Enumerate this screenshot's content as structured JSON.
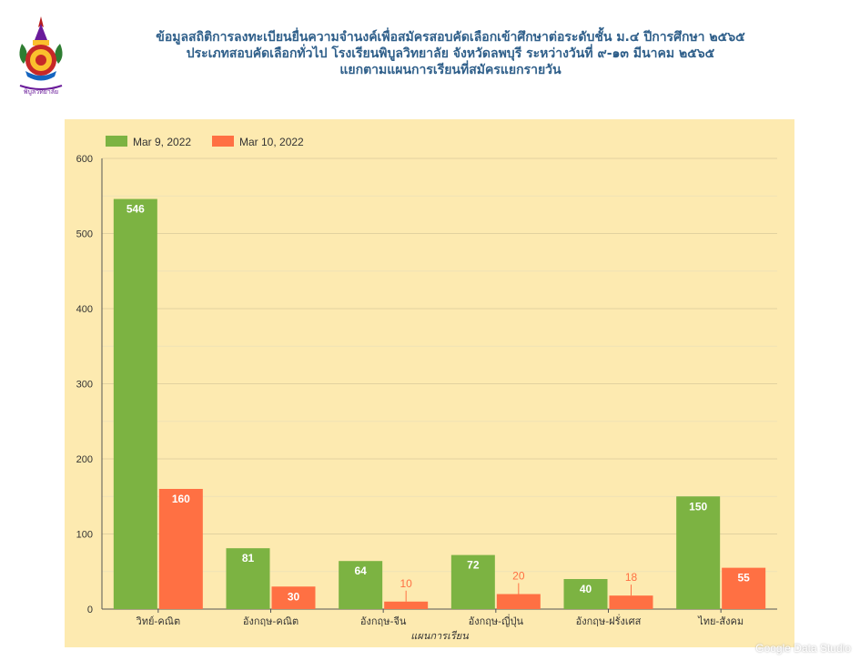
{
  "header": {
    "line1": "ข้อมูลสถิติการลงทะเบียนยื่นความจำนงค์เพื่อสมัครสอบคัดเลือกเข้าศึกษาต่อระดับชั้น ม.๔ ปีการศึกษา ๒๕๖๕",
    "line2": "ประเภทสอบคัดเลือกทั่วไป  โรงเรียนพิบูลวิทยาลัย จังหวัดลพบุรี ระหว่างวันที่ ๙-๑๓ มีนาคม ๒๕๖๕",
    "line3": "แยกตามแผนการเรียนที่สมัครแยกรายวัน"
  },
  "logo": {
    "text": "พิบูลวิทยาลัย"
  },
  "watermark": "Google Data Studio",
  "colors": {
    "series1": "#7cb342",
    "series2": "#ff7043",
    "panel_bg": "#fdeab0",
    "title": "#2f5f8a"
  },
  "chart_data": {
    "type": "bar",
    "categories": [
      "วิทย์-คณิต",
      "อังกฤษ-คณิต",
      "อังกฤษ-จีน",
      "อังกฤษ-ญี่ปุ่น",
      "อังกฤษ-ฝรั่งเศส",
      "ไทย-สังคม"
    ],
    "series": [
      {
        "name": "Mar 9, 2022",
        "values": [
          546,
          81,
          64,
          72,
          40,
          150
        ]
      },
      {
        "name": "Mar 10, 2022",
        "values": [
          160,
          30,
          10,
          20,
          18,
          55
        ]
      }
    ],
    "xlabel": "แผนการเรียน",
    "ylabel": "",
    "ylim": [
      0,
      600
    ],
    "yticks": [
      0,
      100,
      200,
      300,
      400,
      500,
      600
    ],
    "grid": true,
    "legend": "top-left"
  }
}
